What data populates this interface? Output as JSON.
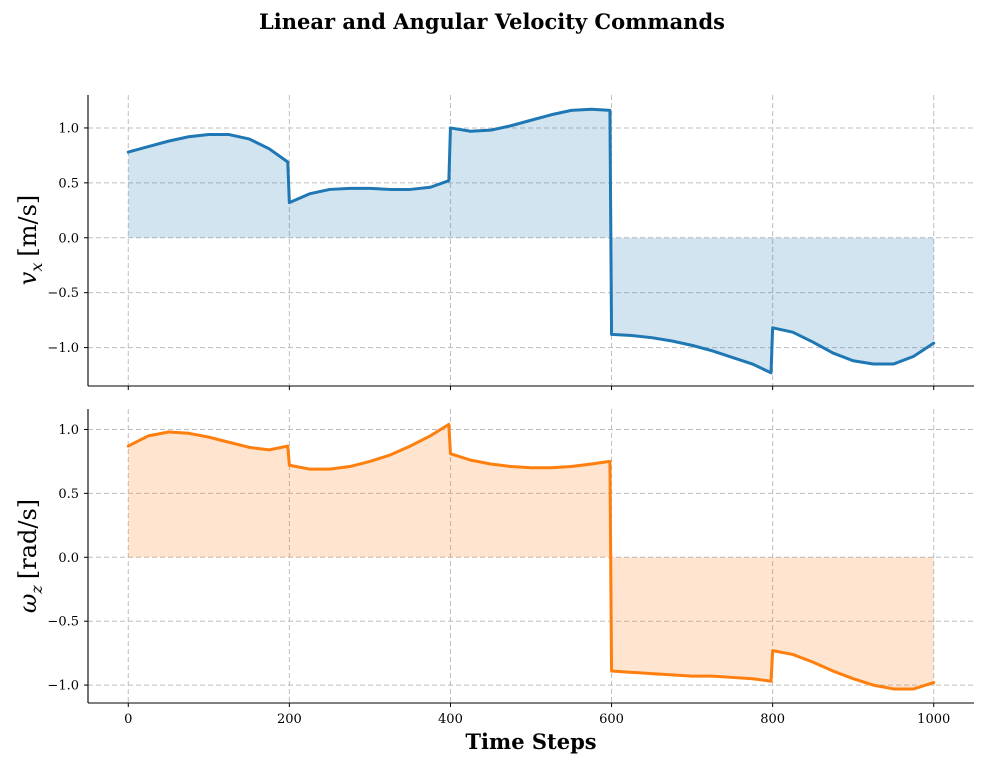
{
  "figure": {
    "title": "Linear and Angular Velocity Commands",
    "xlabel": "Time Steps"
  },
  "chart_data": [
    {
      "type": "line",
      "fill": "area to zero",
      "ylabel_symbol": "v",
      "ylabel_subscript": "x",
      "ylabel_unit": "[m/s]",
      "color": "#1f77b4",
      "fill_color": "#1f77b4",
      "fill_opacity": 0.2,
      "xlim": [
        -50,
        1050
      ],
      "ylim": [
        -1.35,
        1.3
      ],
      "xticks": [
        0,
        200,
        400,
        600,
        800,
        1000
      ],
      "yticks": [
        -1.0,
        -0.5,
        0.0,
        0.5,
        1.0
      ],
      "ytick_labels": [
        "−1.0",
        "−0.5",
        "0.0",
        "0.5",
        "1.0"
      ],
      "grid": true,
      "x": [
        0,
        25,
        50,
        75,
        100,
        125,
        150,
        175,
        198,
        200,
        225,
        250,
        275,
        300,
        325,
        350,
        375,
        398,
        400,
        425,
        450,
        475,
        500,
        525,
        550,
        575,
        598,
        600,
        625,
        650,
        675,
        700,
        725,
        750,
        775,
        798,
        800,
        825,
        850,
        875,
        900,
        925,
        950,
        975,
        1000
      ],
      "y": [
        0.78,
        0.83,
        0.88,
        0.92,
        0.94,
        0.94,
        0.9,
        0.81,
        0.69,
        0.32,
        0.4,
        0.44,
        0.45,
        0.45,
        0.44,
        0.44,
        0.46,
        0.52,
        1.0,
        0.97,
        0.98,
        1.02,
        1.07,
        1.12,
        1.16,
        1.17,
        1.16,
        -0.88,
        -0.89,
        -0.91,
        -0.94,
        -0.98,
        -1.03,
        -1.09,
        -1.15,
        -1.23,
        -0.82,
        -0.86,
        -0.95,
        -1.05,
        -1.12,
        -1.15,
        -1.15,
        -1.08,
        -0.96
      ]
    },
    {
      "type": "line",
      "fill": "area to zero",
      "ylabel_symbol": "ω",
      "ylabel_subscript": "z",
      "ylabel_unit": "[rad/s]",
      "color": "#ff7f0e",
      "fill_color": "#ff7f0e",
      "fill_opacity": 0.2,
      "xlim": [
        -50,
        1050
      ],
      "ylim": [
        -1.14,
        1.16
      ],
      "xticks": [
        0,
        200,
        400,
        600,
        800,
        1000
      ],
      "xtick_labels": [
        "0",
        "200",
        "400",
        "600",
        "800",
        "1000"
      ],
      "yticks": [
        -1.0,
        -0.5,
        0.0,
        0.5,
        1.0
      ],
      "ytick_labels": [
        "−1.0",
        "−0.5",
        "0.0",
        "0.5",
        "1.0"
      ],
      "grid": true,
      "x": [
        0,
        25,
        50,
        75,
        100,
        125,
        150,
        175,
        198,
        200,
        225,
        250,
        275,
        300,
        325,
        350,
        375,
        398,
        400,
        425,
        450,
        475,
        500,
        525,
        550,
        575,
        598,
        600,
        625,
        650,
        675,
        700,
        725,
        750,
        775,
        798,
        800,
        825,
        850,
        875,
        900,
        925,
        950,
        975,
        1000
      ],
      "y": [
        0.87,
        0.95,
        0.98,
        0.97,
        0.94,
        0.9,
        0.86,
        0.84,
        0.87,
        0.72,
        0.69,
        0.69,
        0.71,
        0.75,
        0.8,
        0.87,
        0.95,
        1.04,
        0.81,
        0.76,
        0.73,
        0.71,
        0.7,
        0.7,
        0.71,
        0.73,
        0.75,
        -0.89,
        -0.9,
        -0.91,
        -0.92,
        -0.93,
        -0.93,
        -0.94,
        -0.95,
        -0.97,
        -0.73,
        -0.76,
        -0.82,
        -0.89,
        -0.95,
        -1.0,
        -1.03,
        -1.03,
        -0.98
      ]
    }
  ]
}
